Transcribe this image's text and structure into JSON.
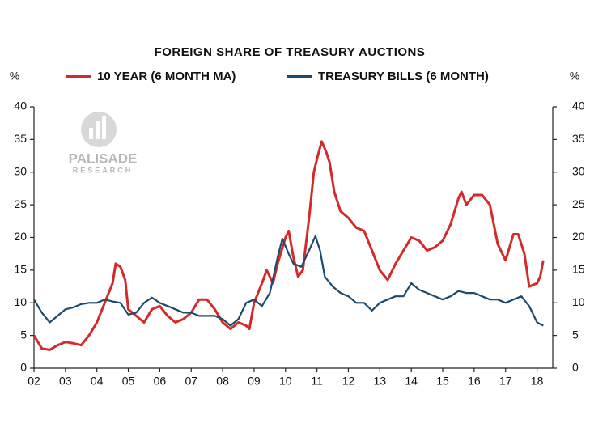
{
  "chart_data": {
    "type": "line",
    "title": "FOREIGN SHARE OF TREASURY AUCTIONS",
    "y_label": "%",
    "y2_label": "%",
    "watermark": [
      "PALISADE",
      "RESEARCH"
    ],
    "xlim": [
      2002,
      2018.5
    ],
    "xticks": [
      {
        "value": 2002,
        "label": "02"
      },
      {
        "value": 2003,
        "label": "03"
      },
      {
        "value": 2004,
        "label": "04"
      },
      {
        "value": 2005,
        "label": "05"
      },
      {
        "value": 2006,
        "label": "06"
      },
      {
        "value": 2007,
        "label": "07"
      },
      {
        "value": 2008,
        "label": "08"
      },
      {
        "value": 2009,
        "label": "09"
      },
      {
        "value": 2010,
        "label": "10"
      },
      {
        "value": 2011,
        "label": "11"
      },
      {
        "value": 2012,
        "label": "12"
      },
      {
        "value": 2013,
        "label": "13"
      },
      {
        "value": 2014,
        "label": "14"
      },
      {
        "value": 2015,
        "label": "15"
      },
      {
        "value": 2016,
        "label": "16"
      },
      {
        "value": 2017,
        "label": "17"
      },
      {
        "value": 2018,
        "label": "18"
      }
    ],
    "ylim": [
      0,
      40
    ],
    "yticks": [
      0,
      5,
      10,
      15,
      20,
      25,
      30,
      35,
      40
    ],
    "y2lim": [
      0,
      40
    ],
    "y2ticks": [
      0,
      5,
      10,
      15,
      20,
      25,
      30,
      35,
      40
    ],
    "grid": false,
    "series": [
      {
        "name": "10 YEAR (6 MONTH MA)",
        "color": "#d42a2a",
        "x": [
          2002.0,
          2002.25,
          2002.5,
          2002.75,
          2003.0,
          2003.25,
          2003.5,
          2003.75,
          2004.0,
          2004.25,
          2004.5,
          2004.6,
          2004.75,
          2004.9,
          2005.0,
          2005.25,
          2005.5,
          2005.75,
          2006.0,
          2006.25,
          2006.5,
          2006.75,
          2007.0,
          2007.25,
          2007.5,
          2007.75,
          2008.0,
          2008.25,
          2008.5,
          2008.75,
          2008.85,
          2009.0,
          2009.25,
          2009.4,
          2009.6,
          2009.75,
          2010.0,
          2010.1,
          2010.25,
          2010.4,
          2010.55,
          2010.75,
          2010.9,
          2011.0,
          2011.15,
          2011.3,
          2011.4,
          2011.55,
          2011.75,
          2012.0,
          2012.25,
          2012.5,
          2012.75,
          2013.0,
          2013.25,
          2013.5,
          2013.75,
          2014.0,
          2014.25,
          2014.5,
          2014.75,
          2015.0,
          2015.25,
          2015.5,
          2015.6,
          2015.75,
          2016.0,
          2016.25,
          2016.5,
          2016.75,
          2017.0,
          2017.25,
          2017.4,
          2017.6,
          2017.75,
          2018.0,
          2018.1,
          2018.2
        ],
        "values": [
          5,
          3,
          2.8,
          3.5,
          4,
          3.8,
          3.5,
          5,
          7,
          10,
          13,
          16,
          15.5,
          13.5,
          9,
          8,
          7,
          9,
          9.5,
          8,
          7,
          7.5,
          8.5,
          10.5,
          10.5,
          9,
          7,
          6,
          7,
          6.5,
          6,
          10,
          13,
          15,
          13,
          16,
          20,
          21,
          17,
          14,
          15,
          23,
          30,
          32,
          34.7,
          33,
          31.5,
          27,
          24,
          23,
          21.5,
          21,
          18,
          15,
          13.5,
          16,
          18,
          20,
          19.5,
          18,
          18.5,
          19.5,
          22,
          26,
          27,
          25,
          26.5,
          26.5,
          25,
          19,
          16.5,
          20.5,
          20.5,
          17.5,
          12.5,
          13,
          14,
          16.5
        ]
      },
      {
        "name": "TREASURY BILLS (6 MONTH)",
        "color": "#1d4a6d",
        "x": [
          2002.0,
          2002.25,
          2002.5,
          2002.75,
          2003.0,
          2003.25,
          2003.5,
          2003.75,
          2004.0,
          2004.25,
          2004.5,
          2004.75,
          2005.0,
          2005.25,
          2005.5,
          2005.75,
          2006.0,
          2006.25,
          2006.5,
          2006.75,
          2007.0,
          2007.25,
          2007.5,
          2007.75,
          2008.0,
          2008.25,
          2008.5,
          2008.75,
          2009.0,
          2009.25,
          2009.5,
          2009.75,
          2009.9,
          2010.1,
          2010.25,
          2010.5,
          2010.75,
          2010.95,
          2011.1,
          2011.25,
          2011.5,
          2011.75,
          2012.0,
          2012.25,
          2012.5,
          2012.75,
          2013.0,
          2013.25,
          2013.5,
          2013.75,
          2014.0,
          2014.25,
          2014.5,
          2014.75,
          2015.0,
          2015.25,
          2015.5,
          2015.75,
          2016.0,
          2016.25,
          2016.5,
          2016.75,
          2017.0,
          2017.25,
          2017.5,
          2017.75,
          2018.0,
          2018.2
        ],
        "values": [
          10.5,
          8.5,
          7,
          8,
          9,
          9.3,
          9.8,
          10,
          10,
          10.5,
          10.2,
          10,
          8.2,
          8.5,
          10,
          10.8,
          10,
          9.5,
          9,
          8.5,
          8.5,
          8,
          8,
          8,
          7.5,
          6.5,
          7.5,
          10,
          10.5,
          9.5,
          11.5,
          17,
          19.8,
          17.5,
          16,
          15.5,
          18,
          20.2,
          18,
          14,
          12.5,
          11.5,
          11,
          10,
          10,
          8.8,
          10,
          10.5,
          11,
          11,
          13,
          12,
          11.5,
          11,
          10.5,
          11,
          11.8,
          11.5,
          11.5,
          11,
          10.5,
          10.5,
          10,
          10.5,
          11,
          9.5,
          7,
          6.5
        ]
      }
    ]
  }
}
